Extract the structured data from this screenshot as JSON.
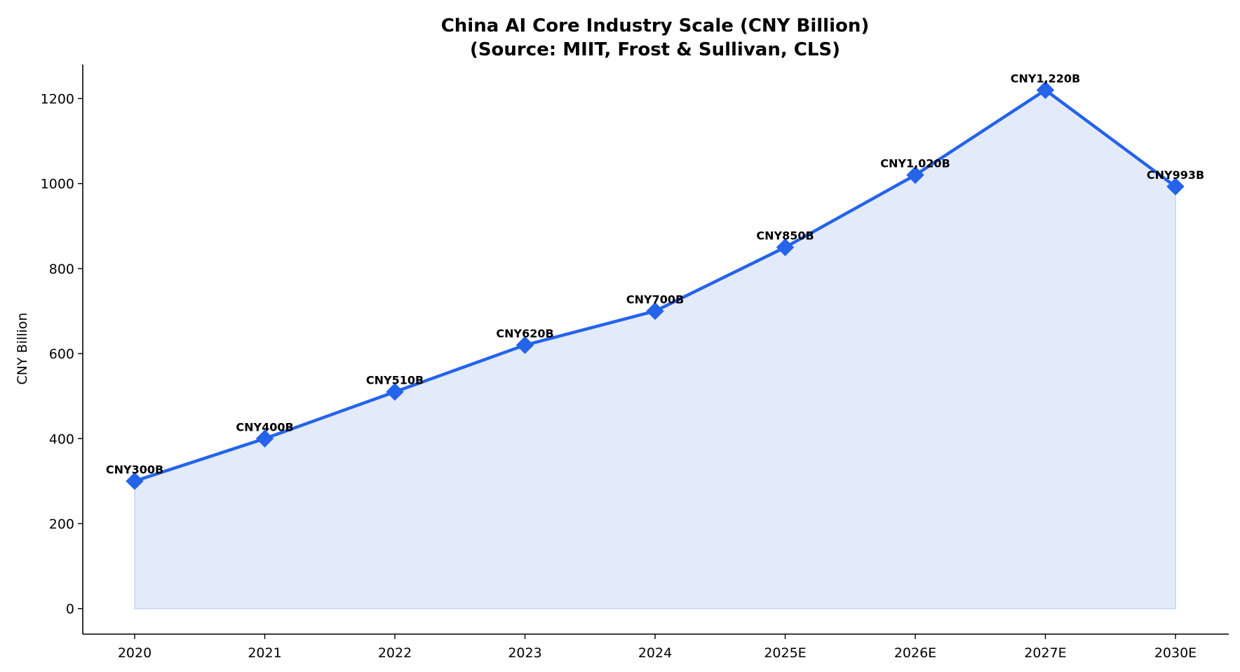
{
  "chart_data": {
    "type": "area",
    "title": "China AI Core Industry Scale (CNY Billion)",
    "subtitle": "(Source: MIIT, Frost & Sullivan, CLS)",
    "xlabel": "",
    "ylabel": "CNY Billion",
    "categories": [
      "2020",
      "2021",
      "2022",
      "2023",
      "2024",
      "2025E",
      "2026E",
      "2027E",
      "2030E"
    ],
    "series": [
      {
        "values": [
          300,
          400,
          510,
          620,
          700,
          850,
          1020,
          1220,
          993
        ],
        "data_labels": [
          "CNY300B",
          "CNY400B",
          "CNY510B",
          "CNY620B",
          "CNY700B",
          "CNY850B",
          "CNY1,020B",
          "CNY1,220B",
          "CNY993B"
        ],
        "line_color": "#2563eb",
        "fill_color": "#e3ebfa",
        "marker": "diamond"
      }
    ],
    "ylim": [
      -60,
      1280
    ],
    "yticks": [
      0,
      200,
      400,
      600,
      800,
      1000,
      1200
    ],
    "grid": false,
    "legend": "none"
  }
}
